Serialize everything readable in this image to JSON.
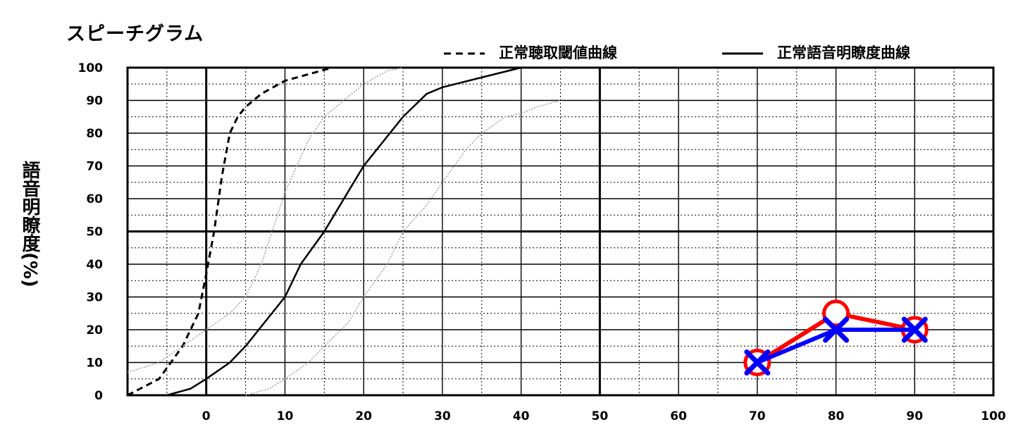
{
  "chart_data": {
    "type": "line",
    "title": "スピーチグラム",
    "xlabel": "",
    "ylabel": "語音明瞭度(%)",
    "xlim": [
      -10,
      100
    ],
    "ylim": [
      0,
      100
    ],
    "x_ticks": [
      "0",
      "10",
      "20",
      "30",
      "40",
      "50",
      "60",
      "70",
      "80",
      "90",
      "100"
    ],
    "y_ticks": [
      "0",
      "10",
      "20",
      "30",
      "40",
      "50",
      "60",
      "70",
      "80",
      "90",
      "100"
    ],
    "grid": true,
    "legend_position": "top-right",
    "legend": [
      {
        "label": "正常聴取閾値曲線",
        "style": "dashed"
      },
      {
        "label": "正常語音明瞭度曲線",
        "style": "solid"
      }
    ],
    "series": [
      {
        "name": "正常聴取閾値曲線",
        "style": "dashed",
        "color": "#000000",
        "x": [
          -10,
          -6,
          -3,
          -1,
          0,
          1,
          2,
          3,
          4,
          5,
          7,
          10,
          13,
          16
        ],
        "y": [
          0,
          5,
          15,
          25,
          37,
          50,
          67,
          80,
          85,
          88,
          92,
          96,
          98,
          100
        ]
      },
      {
        "name": "正常語音明瞭度曲線",
        "style": "solid",
        "color": "#000000",
        "x": [
          -5,
          -2,
          0,
          3,
          5,
          8,
          10,
          12,
          15,
          18,
          20,
          23,
          25,
          28,
          30,
          35,
          40
        ],
        "y": [
          0,
          2,
          5,
          10,
          15,
          24,
          30,
          40,
          50,
          62,
          70,
          79,
          85,
          92,
          94,
          97,
          100
        ]
      },
      {
        "style": "dotted-gray",
        "color": "#a0a0a0",
        "x": [
          -10,
          -6,
          -3,
          0,
          3,
          5,
          7,
          10,
          13,
          15,
          18,
          20,
          23,
          25
        ],
        "y": [
          7,
          10,
          15,
          20,
          25,
          30,
          40,
          62,
          78,
          85,
          91,
          95,
          99,
          100
        ]
      },
      {
        "style": "dotted-gray",
        "color": "#a0a0a0",
        "x": [
          5,
          8,
          10,
          13,
          15,
          18,
          20,
          23,
          25,
          28,
          30,
          33,
          35,
          38,
          40,
          42,
          45
        ],
        "y": [
          0,
          2,
          5,
          10,
          15,
          22,
          30,
          40,
          50,
          58,
          65,
          75,
          80,
          85,
          86,
          88,
          90
        ]
      },
      {
        "marker": "circle",
        "color": "#ff0000",
        "x": [
          70,
          80,
          90
        ],
        "y": [
          10,
          25,
          20
        ]
      },
      {
        "marker": "cross",
        "color": "#0000ff",
        "x": [
          70,
          80,
          90
        ],
        "y": [
          10,
          20,
          20
        ]
      }
    ]
  }
}
